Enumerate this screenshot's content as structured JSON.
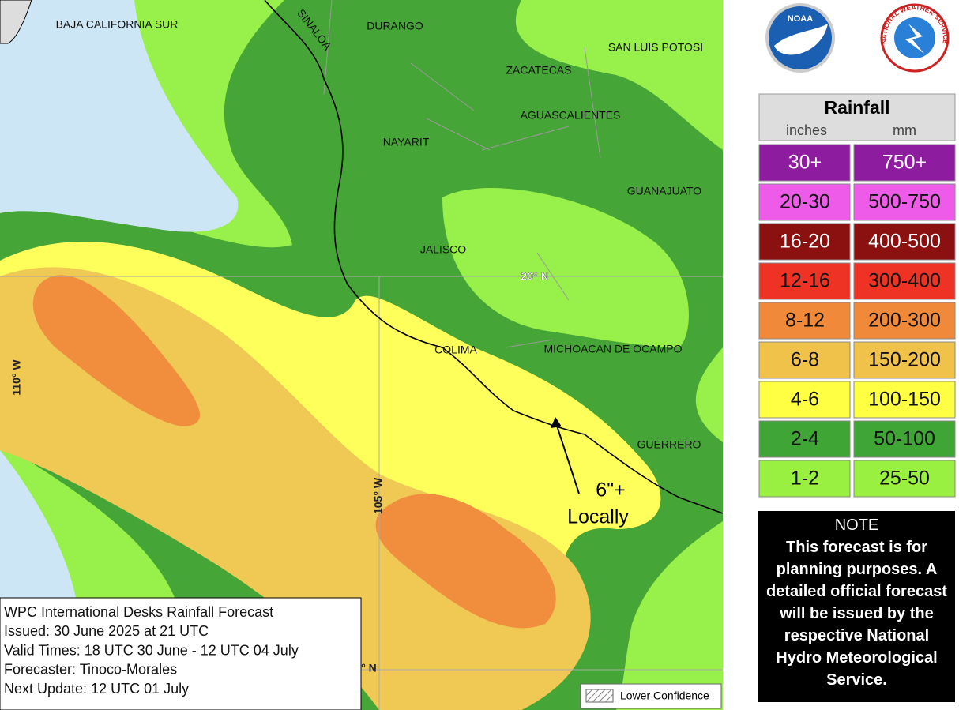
{
  "map": {
    "place_labels": [
      "BAJA CALIFORNIA SUR",
      "SINALOA",
      "DURANGO",
      "SAN LUIS POTOSI",
      "ZACATECAS",
      "AGUASCALIENTES",
      "NAYARIT",
      "GUANAJUATO",
      "JALISCO",
      "COLIMA",
      "MICHOACAN DE OCAMPO",
      "GUERRERO"
    ],
    "grid_labels": [
      "20° N",
      "110° W",
      "105° W",
      "° N"
    ],
    "annotation": [
      "6\"+",
      "Locally"
    ],
    "lower_confidence": "Lower Confidence",
    "info": [
      "WPC International Desks Rainfall Forecast",
      "Issued: 30 June 2025 at 21 UTC",
      "Valid Times: 18 UTC 30 June - 12 UTC 04 July",
      "Forecaster: Tinoco-Morales",
      "Next Update: 12 UTC 01 July"
    ]
  },
  "logos": {
    "noaa": "NOAA",
    "nws": "NATIONAL WEATHER SERVICE"
  },
  "legend": {
    "title": "Rainfall",
    "units": [
      "inches",
      "mm"
    ],
    "rows": [
      {
        "inches": "30+",
        "mm": "750+",
        "color": "#8e1c9e"
      },
      {
        "inches": "20-30",
        "mm": "500-750",
        "color": "#ee5be8"
      },
      {
        "inches": "16-20",
        "mm": "400-500",
        "color": "#8b1010"
      },
      {
        "inches": "12-16",
        "mm": "300-400",
        "color": "#ee3224"
      },
      {
        "inches": "8-12",
        "mm": "200-300",
        "color": "#f08a3a"
      },
      {
        "inches": "6-8",
        "mm": "150-200",
        "color": "#f1c24a"
      },
      {
        "inches": "4-6",
        "mm": "100-150",
        "color": "#ffff44"
      },
      {
        "inches": "2-4",
        "mm": "50-100",
        "color": "#3fa535"
      },
      {
        "inches": "1-2",
        "mm": "25-50",
        "color": "#99f040"
      }
    ]
  },
  "note": {
    "title": "NOTE",
    "text": "This forecast is for planning purposes. A detailed official forecast will be issued by the respective National Hydro Meteorological Service."
  }
}
